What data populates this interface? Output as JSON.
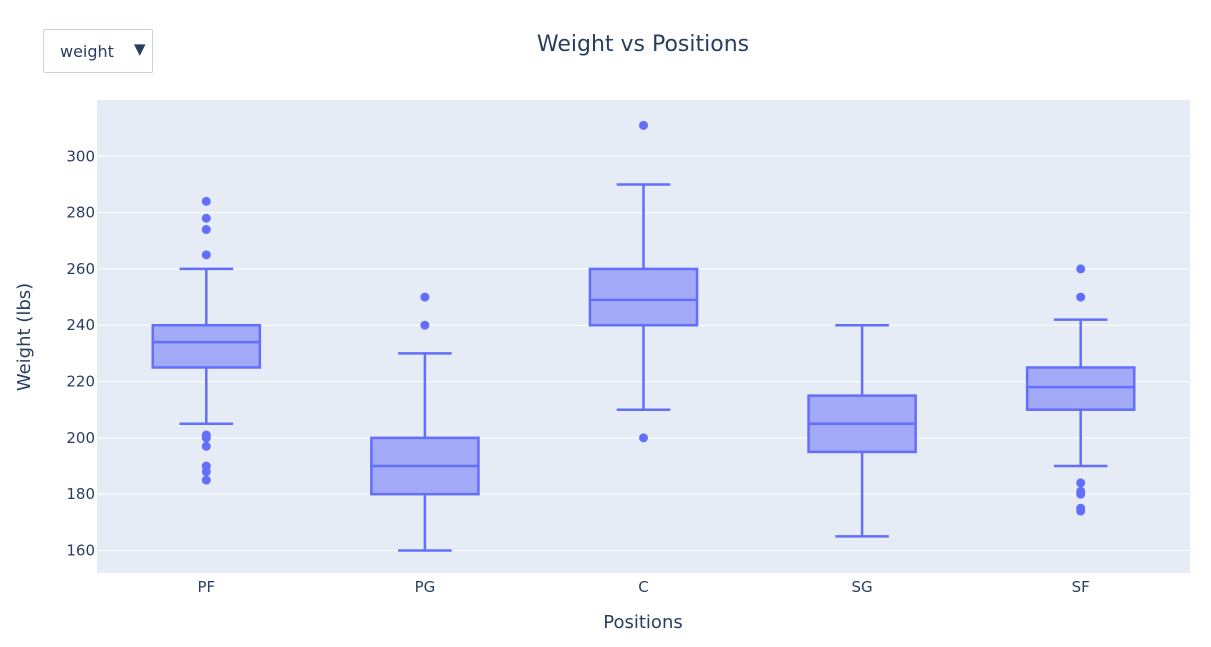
{
  "dropdown": {
    "selected": "weight"
  },
  "colors": {
    "plot_bg": "#e5ecf6",
    "grid": "#ffffff",
    "box_line": "#636efa",
    "box_fill": "#a2a9f7",
    "text": "#2a3f5f"
  },
  "chart_data": {
    "type": "box",
    "title": "Weight vs Positions",
    "xlabel": "Positions",
    "ylabel": "Weight (lbs)",
    "ylim": [
      152,
      320
    ],
    "yticks": [
      160,
      180,
      200,
      220,
      240,
      260,
      280,
      300
    ],
    "grid": true,
    "categories": [
      "PF",
      "PG",
      "C",
      "SG",
      "SF"
    ],
    "boxes": [
      {
        "category": "PF",
        "lowerfence": 205,
        "q1": 225,
        "median": 234,
        "q3": 240,
        "upperfence": 260,
        "outliers": [
          284,
          278,
          274,
          265,
          201,
          200,
          197,
          190,
          188,
          185
        ]
      },
      {
        "category": "PG",
        "lowerfence": 160,
        "q1": 180,
        "median": 190,
        "q3": 200,
        "upperfence": 230,
        "outliers": [
          250,
          240
        ]
      },
      {
        "category": "C",
        "lowerfence": 210,
        "q1": 240,
        "median": 249,
        "q3": 260,
        "upperfence": 290,
        "outliers": [
          311,
          200
        ]
      },
      {
        "category": "SG",
        "lowerfence": 165,
        "q1": 195,
        "median": 205,
        "q3": 215,
        "upperfence": 240,
        "outliers": []
      },
      {
        "category": "SF",
        "lowerfence": 190,
        "q1": 210,
        "median": 218,
        "q3": 225,
        "upperfence": 242,
        "outliers": [
          260,
          250,
          184,
          181,
          180,
          175,
          174
        ]
      }
    ]
  }
}
